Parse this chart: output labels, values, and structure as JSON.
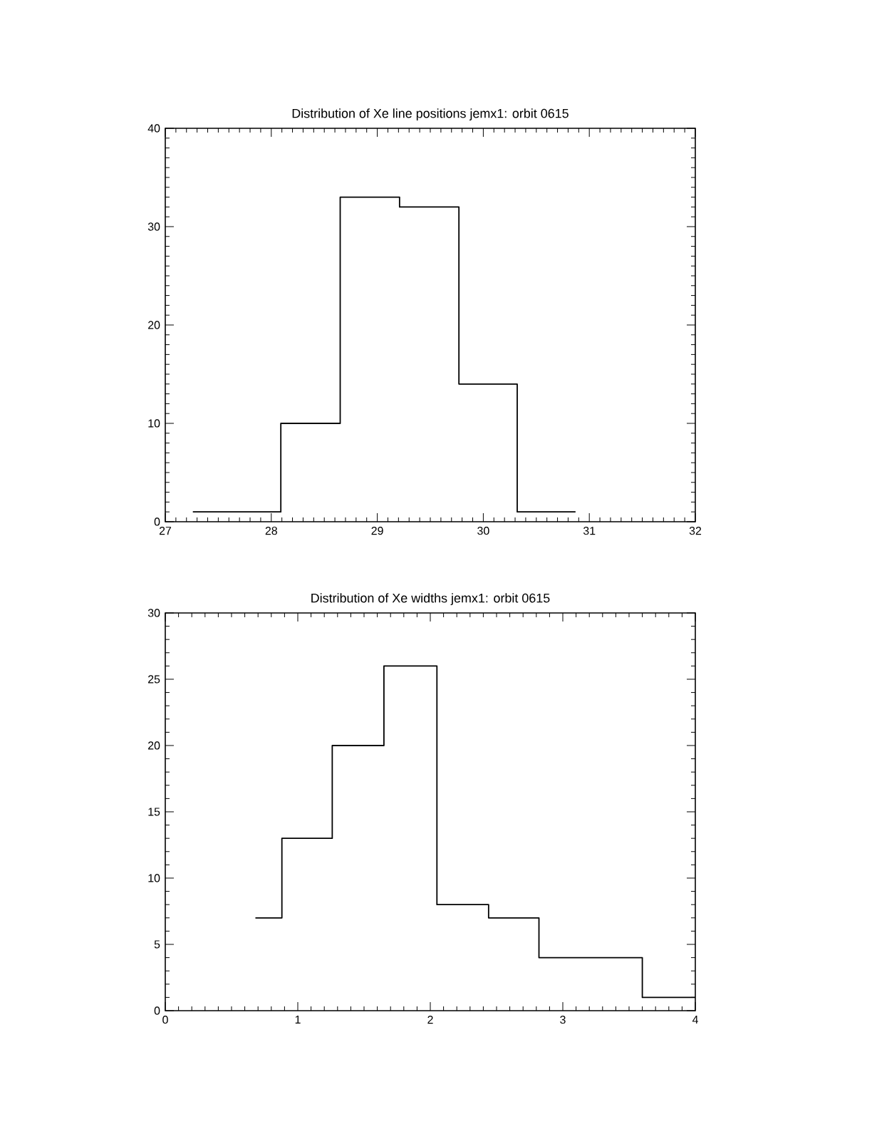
{
  "chart_data": [
    {
      "type": "histogram",
      "title": "Distribution of Xe line positions jemx1: orbit 0615",
      "bins": [
        27.26,
        28.09,
        28.65,
        29.21,
        29.77,
        30.32,
        30.87
      ],
      "values": [
        1,
        10,
        33,
        32,
        14,
        1
      ],
      "color": "#000000",
      "xlim": [
        27,
        32
      ],
      "ylim": [
        0,
        40
      ],
      "xticks": [
        27,
        28,
        29,
        30,
        31,
        32
      ],
      "yticks": [
        0,
        10,
        20,
        30,
        40
      ]
    },
    {
      "type": "histogram",
      "title": "Distribution of Xe widths jemx1: orbit 0615",
      "bins": [
        0.68,
        0.88,
        1.26,
        1.65,
        2.05,
        2.44,
        2.82,
        3.6,
        4.0
      ],
      "values": [
        7,
        13,
        20,
        26,
        8,
        7,
        4,
        1
      ],
      "color": "#000000",
      "xlim": [
        0,
        4
      ],
      "ylim": [
        0,
        30
      ],
      "xticks": [
        0,
        1,
        2,
        3,
        4
      ],
      "yticks": [
        0,
        5,
        10,
        15,
        20,
        25,
        30
      ]
    }
  ]
}
